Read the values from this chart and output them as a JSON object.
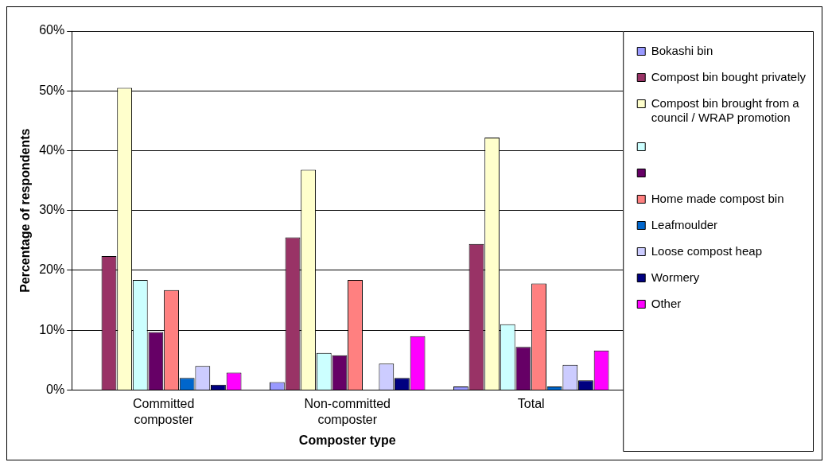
{
  "chart_data": {
    "type": "bar",
    "xlabel": "Composter type",
    "ylabel": "Percentage of respondents",
    "categories": [
      "Committed composter",
      "Non-committed composter",
      "Total"
    ],
    "ylim": [
      0,
      60
    ],
    "yticks": [
      {
        "value": 0,
        "label": "0%"
      },
      {
        "value": 10,
        "label": "10%"
      },
      {
        "value": 20,
        "label": "20%"
      },
      {
        "value": 30,
        "label": "30%"
      },
      {
        "value": 40,
        "label": "40%"
      },
      {
        "value": 50,
        "label": "50%"
      },
      {
        "value": 60,
        "label": "60%"
      }
    ],
    "grid": "y",
    "legend": "right",
    "series": [
      {
        "name": "Bokashi bin",
        "color": "#9999ff",
        "values": [
          0,
          1.3,
          0.6
        ]
      },
      {
        "name": "Compost bin bought privately",
        "color": "#993366",
        "values": [
          22.4,
          25.5,
          24.4
        ]
      },
      {
        "name": "Compost bin brought from a council / WRAP promotion",
        "color": "#ffffcc",
        "values": [
          50.5,
          36.8,
          42.2
        ]
      },
      {
        "color": "#ccffff",
        "values": [
          18.4,
          6.2,
          11.0
        ]
      },
      {
        "color": "#660066",
        "values": [
          9.7,
          5.8,
          7.2
        ]
      },
      {
        "name": "Home made compost bin",
        "color": "#ff8080",
        "values": [
          16.7,
          18.4,
          17.8
        ]
      },
      {
        "name": "Leafmoulder",
        "color": "#0066cc",
        "values": [
          2.0,
          0,
          0.6
        ]
      },
      {
        "name": "Loose compost heap",
        "color": "#ccccff",
        "values": [
          4.0,
          4.4,
          4.2
        ]
      },
      {
        "name": "Wormery",
        "color": "#000080",
        "values": [
          0.9,
          2.0,
          1.6
        ]
      },
      {
        "name": "Other",
        "color": "#ff00ff",
        "values": [
          2.9,
          9.0,
          6.6
        ]
      }
    ]
  }
}
